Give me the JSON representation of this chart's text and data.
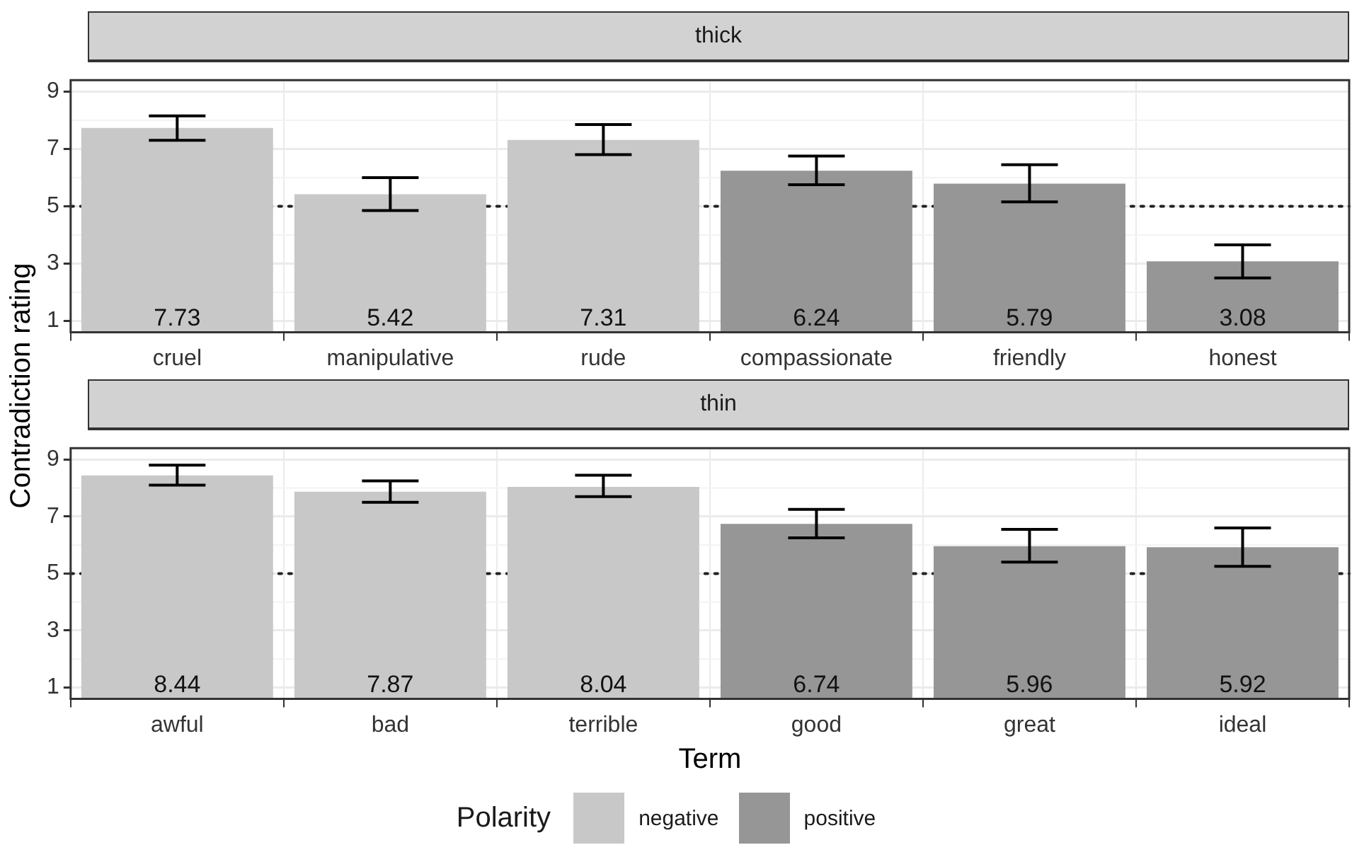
{
  "chart_data": [
    {
      "type": "bar",
      "title": "thick",
      "ylabel": "Contradiction rating",
      "categories": [
        "cruel",
        "manipulative",
        "rude",
        "compassionate",
        "friendly",
        "honest"
      ],
      "series": [
        {
          "color": "#c8c8c8",
          "values": [
            7.73,
            5.42,
            7.31,
            null,
            null,
            null
          ],
          "errors": [
            [
              7.3,
              8.15
            ],
            [
              4.85,
              6.0
            ],
            [
              6.8,
              7.85
            ],
            null,
            null,
            null
          ]
        },
        {
          "color": "#969696",
          "values": [
            null,
            null,
            null,
            6.24,
            5.79,
            3.08
          ],
          "errors": [
            null,
            null,
            null,
            [
              5.75,
              6.75
            ],
            [
              5.15,
              6.45
            ],
            [
              2.5,
              3.65
            ]
          ]
        }
      ],
      "ylim": [
        0.6,
        9.4
      ],
      "yticks": [
        1,
        3,
        5,
        7,
        9
      ],
      "grid": true,
      "data_labels": true,
      "legend": false,
      "ref_lines": [
        {
          "axis": "y",
          "value": 5,
          "line_style": "dotted",
          "color": "#222222"
        }
      ]
    },
    {
      "type": "bar",
      "title": "thin",
      "xlabel": "Term",
      "legend_title": "Polarity",
      "categories": [
        "awful",
        "bad",
        "terrible",
        "good",
        "great",
        "ideal"
      ],
      "series": [
        {
          "name": "negative",
          "color": "#c8c8c8",
          "values": [
            8.44,
            7.87,
            8.04,
            null,
            null,
            null
          ],
          "errors": [
            [
              8.1,
              8.8
            ],
            [
              7.5,
              8.25
            ],
            [
              7.7,
              8.45
            ],
            null,
            null,
            null
          ]
        },
        {
          "name": "positive",
          "color": "#969696",
          "values": [
            null,
            null,
            null,
            6.74,
            5.96,
            5.92
          ],
          "errors": [
            null,
            null,
            null,
            [
              6.25,
              7.25
            ],
            [
              5.4,
              6.55
            ],
            [
              5.25,
              6.6
            ]
          ]
        }
      ],
      "ylim": [
        0.6,
        9.4
      ],
      "yticks": [
        1,
        3,
        5,
        7,
        9
      ],
      "grid": true,
      "data_labels": true,
      "legend": "bottom",
      "ref_lines": [
        {
          "axis": "y",
          "value": 5,
          "line_style": "dotted",
          "color": "#222222"
        }
      ]
    }
  ]
}
